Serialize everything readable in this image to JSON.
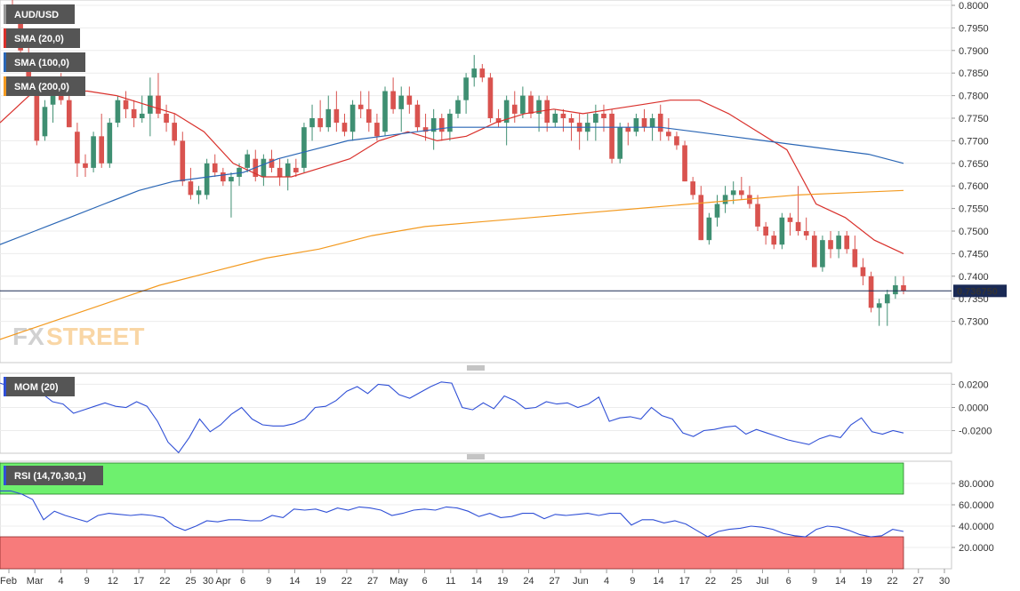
{
  "main": {
    "legend": [
      {
        "label": "AUD/USD",
        "color": "#555555"
      },
      {
        "label": "SMA (20,0)",
        "color": "#d9302b"
      },
      {
        "label": "SMA (100,0)",
        "color": "#2a66b5"
      },
      {
        "label": "SMA (200,0)",
        "color": "#f39a20"
      }
    ],
    "watermark": {
      "fx": "FX",
      "street": "STREET"
    },
    "price_tag": "0.736750"
  },
  "mom": {
    "legend": "MOM (20)"
  },
  "rsi": {
    "legend": "RSI (14,70,30,1)"
  },
  "chart_data": [
    {
      "type": "candlestick",
      "title": "AUD/USD",
      "ylim": [
        0.725,
        0.8
      ],
      "y_ticks": [
        "0.8000",
        "0.7950",
        "0.7900",
        "0.7850",
        "0.7800",
        "0.7750",
        "0.7700",
        "0.7650",
        "0.7600",
        "0.7550",
        "0.7500",
        "0.7450",
        "0.7400",
        "0.7350",
        "0.7300"
      ],
      "x_ticks": [
        "Feb",
        "Mar",
        "4",
        "9",
        "12",
        "17",
        "22",
        "25",
        "30 Apr",
        "6",
        "9",
        "14",
        "19",
        "22",
        "27",
        "May",
        "6",
        "11",
        "14",
        "19",
        "24",
        "27",
        "Jun",
        "4",
        "9",
        "14",
        "17",
        "22",
        "25",
        "Jul",
        "6",
        "9",
        "14",
        "19",
        "22",
        "27",
        "30"
      ],
      "current_price": 0.73675,
      "candles": [
        [
          0.8,
          0.803,
          0.796,
          0.798
        ],
        [
          0.7975,
          0.799,
          0.788,
          0.79
        ],
        [
          0.789,
          0.791,
          0.78,
          0.782
        ],
        [
          0.781,
          0.783,
          0.769,
          0.77
        ],
        [
          0.771,
          0.779,
          0.77,
          0.7775
        ],
        [
          0.778,
          0.784,
          0.774,
          0.783
        ],
        [
          0.781,
          0.785,
          0.778,
          0.779
        ],
        [
          0.779,
          0.78,
          0.773,
          0.773
        ],
        [
          0.772,
          0.774,
          0.762,
          0.765
        ],
        [
          0.765,
          0.767,
          0.762,
          0.764
        ],
        [
          0.764,
          0.772,
          0.763,
          0.771
        ],
        [
          0.771,
          0.776,
          0.764,
          0.765
        ],
        [
          0.765,
          0.775,
          0.764,
          0.774
        ],
        [
          0.774,
          0.78,
          0.773,
          0.779
        ],
        [
          0.779,
          0.781,
          0.775,
          0.777
        ],
        [
          0.777,
          0.779,
          0.773,
          0.775
        ],
        [
          0.775,
          0.78,
          0.774,
          0.776
        ],
        [
          0.776,
          0.784,
          0.771,
          0.78
        ],
        [
          0.78,
          0.785,
          0.775,
          0.776
        ],
        [
          0.776,
          0.778,
          0.772,
          0.774
        ],
        [
          0.774,
          0.776,
          0.769,
          0.77
        ],
        [
          0.77,
          0.772,
          0.76,
          0.761
        ],
        [
          0.761,
          0.764,
          0.757,
          0.758
        ],
        [
          0.758,
          0.76,
          0.756,
          0.759
        ],
        [
          0.758,
          0.766,
          0.757,
          0.765
        ],
        [
          0.765,
          0.767,
          0.762,
          0.763
        ],
        [
          0.763,
          0.764,
          0.76,
          0.761
        ],
        [
          0.761,
          0.763,
          0.753,
          0.762
        ],
        [
          0.762,
          0.765,
          0.76,
          0.764
        ],
        [
          0.764,
          0.768,
          0.763,
          0.767
        ],
        [
          0.766,
          0.768,
          0.761,
          0.762
        ],
        [
          0.762,
          0.767,
          0.76,
          0.766
        ],
        [
          0.766,
          0.768,
          0.763,
          0.764
        ],
        [
          0.764,
          0.766,
          0.76,
          0.762
        ],
        [
          0.762,
          0.766,
          0.759,
          0.765
        ],
        [
          0.764,
          0.766,
          0.762,
          0.763
        ],
        [
          0.764,
          0.774,
          0.763,
          0.773
        ],
        [
          0.773,
          0.778,
          0.77,
          0.775
        ],
        [
          0.775,
          0.779,
          0.772,
          0.773
        ],
        [
          0.773,
          0.78,
          0.772,
          0.777
        ],
        [
          0.777,
          0.781,
          0.772,
          0.774
        ],
        [
          0.774,
          0.776,
          0.771,
          0.772
        ],
        [
          0.772,
          0.779,
          0.77,
          0.778
        ],
        [
          0.778,
          0.781,
          0.775,
          0.777
        ],
        [
          0.777,
          0.781,
          0.772,
          0.774
        ],
        [
          0.774,
          0.776,
          0.77,
          0.771
        ],
        [
          0.772,
          0.782,
          0.771,
          0.781
        ],
        [
          0.781,
          0.784,
          0.776,
          0.777
        ],
        [
          0.777,
          0.782,
          0.772,
          0.78
        ],
        [
          0.78,
          0.782,
          0.776,
          0.778
        ],
        [
          0.778,
          0.779,
          0.772,
          0.773
        ],
        [
          0.773,
          0.776,
          0.77,
          0.772
        ],
        [
          0.772,
          0.777,
          0.768,
          0.775
        ],
        [
          0.775,
          0.776,
          0.77,
          0.772
        ],
        [
          0.772,
          0.777,
          0.77,
          0.776
        ],
        [
          0.776,
          0.78,
          0.775,
          0.779
        ],
        [
          0.779,
          0.785,
          0.776,
          0.784
        ],
        [
          0.784,
          0.789,
          0.782,
          0.786
        ],
        [
          0.786,
          0.787,
          0.783,
          0.784
        ],
        [
          0.784,
          0.785,
          0.774,
          0.775
        ],
        [
          0.775,
          0.777,
          0.773,
          0.774
        ],
        [
          0.774,
          0.78,
          0.769,
          0.779
        ],
        [
          0.778,
          0.781,
          0.774,
          0.776
        ],
        [
          0.776,
          0.782,
          0.775,
          0.78
        ],
        [
          0.78,
          0.781,
          0.775,
          0.776
        ],
        [
          0.776,
          0.78,
          0.772,
          0.779
        ],
        [
          0.779,
          0.78,
          0.772,
          0.774
        ],
        [
          0.774,
          0.777,
          0.773,
          0.776
        ],
        [
          0.776,
          0.777,
          0.772,
          0.775
        ],
        [
          0.775,
          0.776,
          0.77,
          0.774
        ],
        [
          0.774,
          0.776,
          0.768,
          0.772
        ],
        [
          0.772,
          0.776,
          0.77,
          0.774
        ],
        [
          0.774,
          0.778,
          0.77,
          0.776
        ],
        [
          0.776,
          0.778,
          0.772,
          0.775
        ],
        [
          0.776,
          0.777,
          0.765,
          0.766
        ],
        [
          0.766,
          0.774,
          0.765,
          0.773
        ],
        [
          0.773,
          0.774,
          0.769,
          0.772
        ],
        [
          0.772,
          0.776,
          0.771,
          0.775
        ],
        [
          0.775,
          0.777,
          0.772,
          0.773
        ],
        [
          0.773,
          0.776,
          0.77,
          0.775
        ],
        [
          0.776,
          0.778,
          0.77,
          0.772
        ],
        [
          0.772,
          0.775,
          0.77,
          0.771
        ],
        [
          0.771,
          0.772,
          0.768,
          0.769
        ],
        [
          0.769,
          0.77,
          0.761,
          0.761
        ],
        [
          0.761,
          0.762,
          0.757,
          0.758
        ],
        [
          0.758,
          0.76,
          0.748,
          0.748
        ],
        [
          0.748,
          0.754,
          0.747,
          0.753
        ],
        [
          0.753,
          0.758,
          0.751,
          0.756
        ],
        [
          0.756,
          0.76,
          0.754,
          0.758
        ],
        [
          0.758,
          0.761,
          0.756,
          0.759
        ],
        [
          0.759,
          0.762,
          0.757,
          0.758
        ],
        [
          0.758,
          0.76,
          0.755,
          0.756
        ],
        [
          0.756,
          0.758,
          0.75,
          0.751
        ],
        [
          0.751,
          0.752,
          0.747,
          0.749
        ],
        [
          0.749,
          0.75,
          0.746,
          0.747
        ],
        [
          0.747,
          0.754,
          0.746,
          0.753
        ],
        [
          0.753,
          0.754,
          0.749,
          0.752
        ],
        [
          0.752,
          0.76,
          0.749,
          0.75
        ],
        [
          0.75,
          0.753,
          0.748,
          0.749
        ],
        [
          0.749,
          0.75,
          0.742,
          0.742
        ],
        [
          0.742,
          0.749,
          0.741,
          0.748
        ],
        [
          0.748,
          0.75,
          0.744,
          0.746
        ],
        [
          0.746,
          0.75,
          0.744,
          0.749
        ],
        [
          0.749,
          0.75,
          0.745,
          0.746
        ],
        [
          0.746,
          0.749,
          0.742,
          0.742
        ],
        [
          0.742,
          0.744,
          0.738,
          0.74
        ],
        [
          0.74,
          0.741,
          0.732,
          0.733
        ],
        [
          0.733,
          0.735,
          0.729,
          0.734
        ],
        [
          0.734,
          0.737,
          0.729,
          0.736
        ],
        [
          0.736,
          0.74,
          0.735,
          0.738
        ],
        [
          0.738,
          0.74,
          0.736,
          0.73675
        ]
      ],
      "series": [
        {
          "name": "SMA (20,0)",
          "values": [
            0.774,
            0.78,
            0.781,
            0.781,
            0.78,
            0.778,
            0.776,
            0.772,
            0.765,
            0.762,
            0.762,
            0.764,
            0.766,
            0.77,
            0.772,
            0.77,
            0.771,
            0.774,
            0.776,
            0.777,
            0.776,
            0.777,
            0.778,
            0.779,
            0.779,
            0.776,
            0.772,
            0.768,
            0.756,
            0.753,
            0.748,
            0.745
          ]
        },
        {
          "name": "SMA (100,0)",
          "values": [
            0.747,
            0.75,
            0.753,
            0.756,
            0.759,
            0.761,
            0.762,
            0.763,
            0.766,
            0.768,
            0.77,
            0.771,
            0.772,
            0.773,
            0.773,
            0.773,
            0.773,
            0.773,
            0.773,
            0.773,
            0.772,
            0.771,
            0.77,
            0.769,
            0.768,
            0.767,
            0.765
          ]
        },
        {
          "name": "SMA (200,0)",
          "values": [
            0.726,
            0.73,
            0.734,
            0.738,
            0.741,
            0.744,
            0.746,
            0.749,
            0.751,
            0.752,
            0.753,
            0.754,
            0.755,
            0.756,
            0.757,
            0.758,
            0.7585,
            0.759
          ]
        }
      ]
    },
    {
      "type": "line",
      "title": "MOM (20)",
      "ylim": [
        -0.038,
        0.028
      ],
      "y_ticks": [
        "0.0200",
        "0.0000",
        "-0.0200"
      ],
      "series": [
        {
          "name": "MOM (20)",
          "values": [
            0.021,
            0.018,
            0.01,
            0.015,
            0.012,
            0.005,
            0.003,
            -0.005,
            -0.002,
            0.001,
            0.004,
            0.001,
            0.0,
            0.005,
            0.001,
            -0.012,
            -0.03,
            -0.039,
            -0.026,
            -0.01,
            -0.021,
            -0.015,
            -0.006,
            0.0,
            -0.01,
            -0.015,
            -0.016,
            -0.016,
            -0.014,
            -0.01,
            0.0,
            0.001,
            0.006,
            0.014,
            0.018,
            0.012,
            0.02,
            0.019,
            0.011,
            0.008,
            0.013,
            0.018,
            0.022,
            0.021,
            0.0,
            -0.002,
            0.004,
            -0.001,
            0.01,
            0.006,
            -0.001,
            0.0,
            0.005,
            0.003,
            0.004,
            0.0,
            0.003,
            0.009,
            -0.012,
            -0.009,
            -0.008,
            -0.01,
            0.0,
            -0.007,
            -0.01,
            -0.022,
            -0.025,
            -0.02,
            -0.019,
            -0.017,
            -0.016,
            -0.023,
            -0.019,
            -0.022,
            -0.025,
            -0.028,
            -0.03,
            -0.032,
            -0.027,
            -0.024,
            -0.026,
            -0.015,
            -0.009,
            -0.021,
            -0.023,
            -0.02,
            -0.022
          ]
        }
      ]
    },
    {
      "type": "line",
      "title": "RSI (14,70,30,1)",
      "ylim": [
        0,
        100
      ],
      "y_ticks": [
        "80.0000",
        "60.0000",
        "40.0000",
        "20.0000"
      ],
      "overbought": 70,
      "oversold": 30,
      "series": [
        {
          "name": "RSI (14,70,30,1)",
          "values": [
            73,
            73,
            70,
            65,
            46,
            54,
            50,
            47,
            44,
            50,
            52,
            51,
            50,
            51,
            50,
            48,
            40,
            36,
            40,
            45,
            44,
            46,
            46,
            45,
            45,
            50,
            48,
            56,
            55,
            56,
            53,
            57,
            55,
            58,
            57,
            55,
            50,
            52,
            55,
            56,
            55,
            58,
            57,
            54,
            49,
            52,
            48,
            49,
            52,
            52,
            47,
            51,
            50,
            51,
            52,
            50,
            52,
            52,
            41,
            46,
            46,
            43,
            45,
            42,
            36,
            30,
            35,
            37,
            38,
            40,
            39,
            37,
            33,
            31,
            30,
            37,
            40,
            39,
            36,
            32,
            30,
            31,
            37,
            35
          ]
        }
      ]
    }
  ]
}
